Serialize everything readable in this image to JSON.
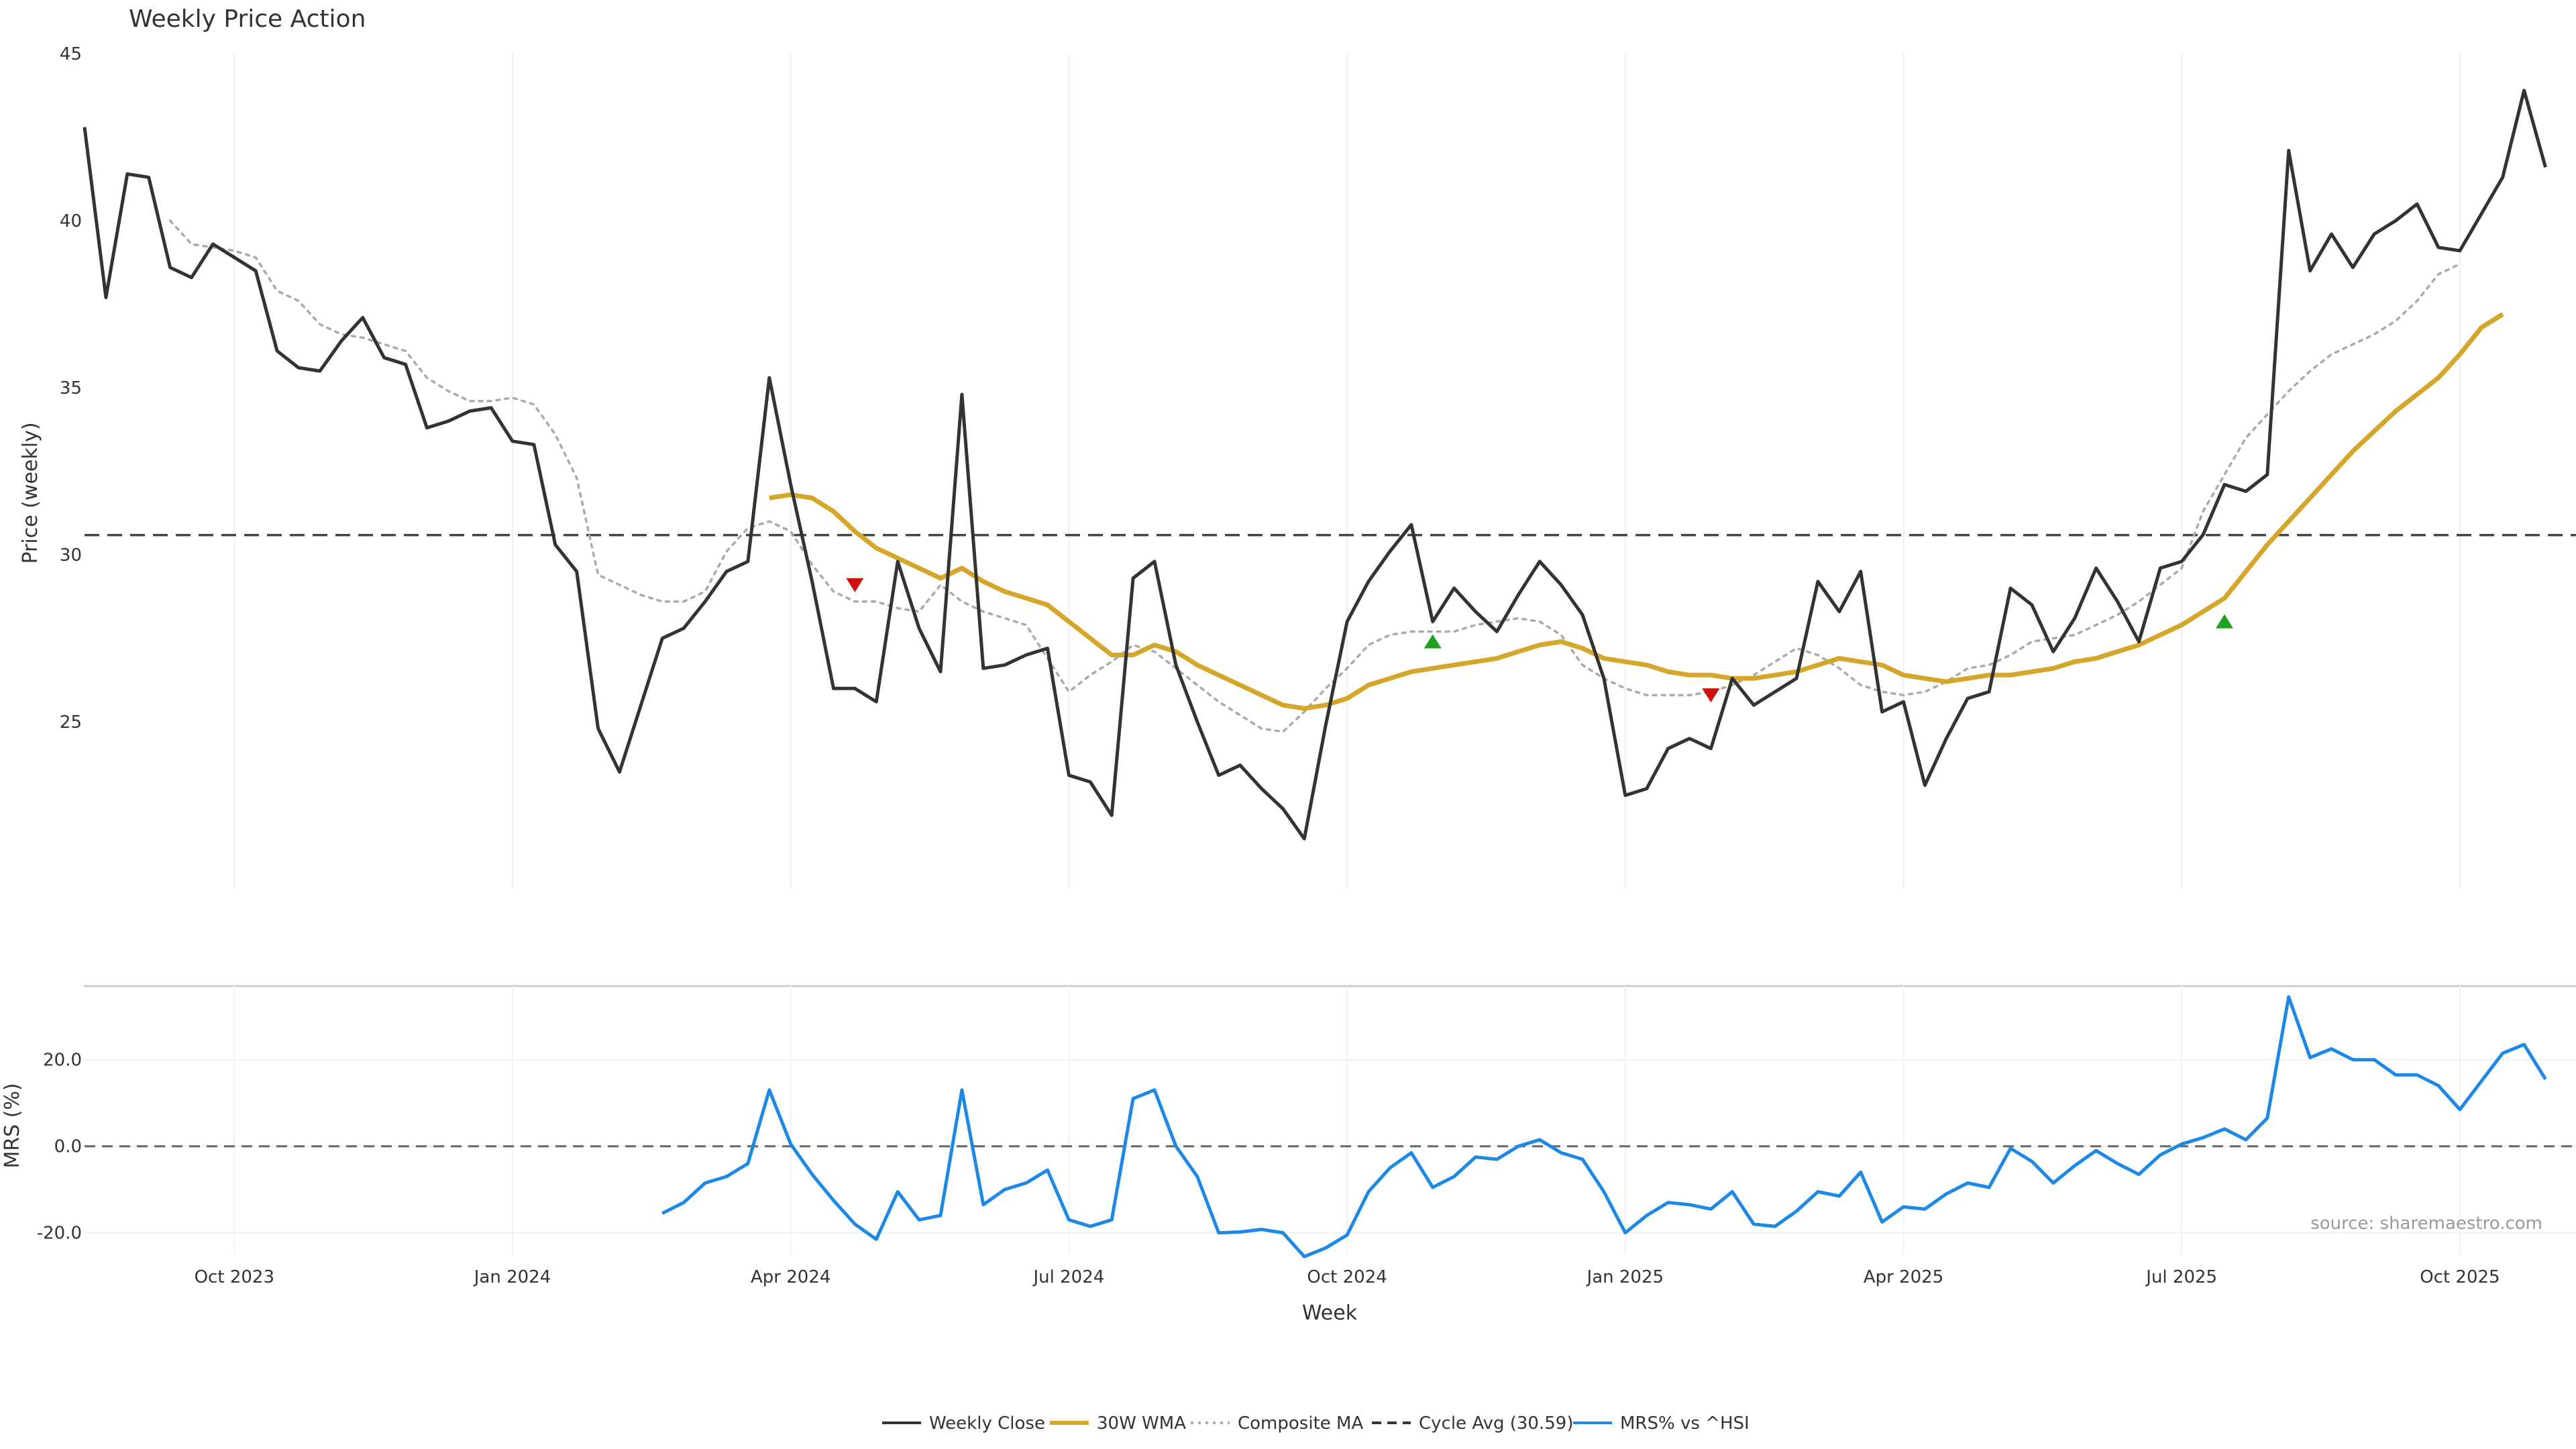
{
  "chart_data": [
    {
      "type": "line",
      "title": "Weekly Price Action",
      "ylabel": "Price (weekly)",
      "xlabel": "",
      "ylim": [
        20,
        45
      ],
      "yticks": [
        25,
        30,
        35,
        40,
        45
      ],
      "cycle_avg": 30.59,
      "series": [
        {
          "name": "Weekly Close",
          "color": "#333333",
          "start_week": 0,
          "values": [
            42.8,
            37.7,
            41.4,
            41.3,
            38.6,
            38.3,
            39.3,
            38.9,
            38.5,
            36.1,
            35.6,
            35.5,
            36.4,
            37.1,
            35.9,
            35.7,
            33.8,
            34.0,
            34.3,
            34.4,
            33.4,
            33.3,
            30.3,
            29.5,
            24.8,
            23.5,
            25.5,
            27.5,
            27.8,
            28.6,
            29.5,
            29.8,
            35.3,
            32.1,
            29.2,
            26.0,
            26.0,
            25.6,
            29.8,
            27.8,
            26.5,
            34.8,
            26.6,
            26.7,
            27.0,
            27.2,
            23.4,
            23.2,
            22.2,
            29.3,
            29.8,
            26.7,
            25.0,
            23.4,
            23.7,
            23.0,
            22.4,
            21.5,
            24.9,
            28.0,
            29.2,
            30.1,
            30.9,
            28.0,
            29.0,
            28.3,
            27.7,
            28.8,
            29.8,
            29.1,
            28.2,
            26.3,
            22.8,
            23.0,
            24.2,
            24.5,
            24.2,
            26.3,
            25.5,
            25.9,
            26.3,
            29.2,
            28.3,
            29.5,
            25.3,
            25.6,
            23.1,
            24.5,
            25.7,
            25.9,
            29.0,
            28.5,
            27.1,
            28.1,
            29.6,
            28.6,
            27.4,
            29.6,
            29.8,
            30.6,
            32.1,
            31.9,
            32.4,
            42.1,
            38.5,
            39.6,
            38.6,
            39.6,
            40.0,
            40.5,
            39.2,
            39.1,
            40.2,
            41.3,
            43.9,
            41.6
          ]
        },
        {
          "name": "30W WMA",
          "color": "#D4A62A",
          "start_week": 32,
          "values": [
            31.7,
            31.8,
            31.7,
            31.3,
            30.7,
            30.2,
            29.9,
            29.6,
            29.3,
            29.6,
            29.2,
            28.9,
            28.7,
            28.5,
            28.0,
            27.5,
            27.0,
            27.0,
            27.3,
            27.1,
            26.7,
            26.4,
            26.1,
            25.8,
            25.5,
            25.4,
            25.5,
            25.7,
            26.1,
            26.3,
            26.5,
            26.6,
            26.7,
            26.8,
            26.9,
            27.1,
            27.3,
            27.4,
            27.2,
            26.9,
            26.8,
            26.7,
            26.5,
            26.4,
            26.4,
            26.3,
            26.3,
            26.4,
            26.5,
            26.7,
            26.9,
            26.8,
            26.7,
            26.4,
            26.3,
            26.2,
            26.3,
            26.4,
            26.4,
            26.5,
            26.6,
            26.8,
            26.9,
            27.1,
            27.3,
            27.6,
            27.9,
            28.3,
            28.7,
            29.5,
            30.3,
            31.0,
            31.7,
            32.4,
            33.1,
            33.7,
            34.3,
            34.8,
            35.3,
            36.0,
            36.8,
            37.2
          ]
        },
        {
          "name": "Composite MA",
          "color": "#AAAAAA",
          "start_week": 4,
          "values": [
            40.0,
            39.3,
            39.2,
            39.1,
            38.9,
            37.9,
            37.6,
            36.9,
            36.6,
            36.5,
            36.3,
            36.1,
            35.3,
            34.9,
            34.6,
            34.6,
            34.7,
            34.5,
            33.6,
            32.3,
            29.4,
            29.1,
            28.8,
            28.6,
            28.6,
            28.9,
            30.1,
            30.8,
            31.0,
            30.7,
            29.7,
            28.9,
            28.6,
            28.6,
            28.4,
            28.3,
            29.1,
            28.6,
            28.3,
            28.1,
            27.9,
            26.9,
            25.9,
            26.4,
            26.8,
            27.3,
            27.1,
            26.6,
            26.1,
            25.6,
            25.2,
            24.8,
            24.7,
            25.3,
            26.0,
            26.6,
            27.3,
            27.6,
            27.7,
            27.7,
            27.7,
            27.9,
            28.0,
            28.1,
            28.0,
            27.6,
            26.7,
            26.3,
            26.0,
            25.8,
            25.8,
            25.8,
            25.9,
            26.1,
            26.4,
            26.8,
            27.2,
            27.0,
            26.6,
            26.1,
            25.9,
            25.8,
            25.9,
            26.2,
            26.6,
            26.7,
            27.0,
            27.4,
            27.5,
            27.6,
            27.9,
            28.2,
            28.6,
            29.1,
            29.6,
            31.3,
            32.4,
            33.5,
            34.2,
            34.9,
            35.5,
            36.0,
            36.3,
            36.6,
            37.0,
            37.6,
            38.4,
            38.7
          ]
        }
      ],
      "markers": [
        {
          "week": 36,
          "value": 29.1,
          "kind": "down",
          "color": "#CC1111"
        },
        {
          "week": 63,
          "value": 27.4,
          "kind": "up",
          "color": "#22A022"
        },
        {
          "week": 76,
          "value": 25.8,
          "kind": "down",
          "color": "#CC1111"
        },
        {
          "week": 100,
          "value": 28.0,
          "kind": "up",
          "color": "#22A022"
        }
      ]
    },
    {
      "type": "line",
      "ylabel": "MRS (%)",
      "xlabel": "Week",
      "ylim": [
        -25,
        37
      ],
      "yticks": [
        "-20.0",
        "0.0",
        "20.0"
      ],
      "ytick_values": [
        -20,
        0,
        20
      ],
      "zero_line": 0,
      "source": "source: sharemaestro.com",
      "x_ticks": [
        {
          "label": "Oct 2023",
          "week": 7
        },
        {
          "label": "Jan 2024",
          "week": 20
        },
        {
          "label": "Apr 2024",
          "week": 33
        },
        {
          "label": "Jul 2024",
          "week": 46
        },
        {
          "label": "Oct 2024",
          "week": 59
        },
        {
          "label": "Jan 2025",
          "week": 72
        },
        {
          "label": "Apr 2025",
          "week": 85
        },
        {
          "label": "Jul 2025",
          "week": 98
        },
        {
          "label": "Oct 2025",
          "week": 111
        }
      ],
      "series": [
        {
          "name": "MRS% vs ^HSI",
          "color": "#1E88E5",
          "start_week": 27,
          "values": [
            -15.5,
            -13.0,
            -8.5,
            -7.0,
            -4.0,
            13.0,
            0.5,
            -6.5,
            -12.5,
            -18.0,
            -21.5,
            -10.5,
            -17.0,
            -16.0,
            13.0,
            -13.5,
            -10.0,
            -8.5,
            -5.5,
            -17.0,
            -18.5,
            -17.0,
            11.0,
            13.0,
            0.0,
            -7.0,
            -20.0,
            -19.8,
            -19.2,
            -20.0,
            -25.5,
            -23.5,
            -20.5,
            -10.5,
            -5.0,
            -1.5,
            -9.5,
            -7.0,
            -2.5,
            -3.0,
            0.0,
            1.5,
            -1.5,
            -3.0,
            -10.5,
            -20.0,
            -16.0,
            -13.0,
            -13.5,
            -14.5,
            -10.5,
            -18.0,
            -18.5,
            -15.0,
            -10.5,
            -11.5,
            -6.0,
            -17.5,
            -14.0,
            -14.5,
            -11.0,
            -8.5,
            -9.5,
            -0.5,
            -3.5,
            -8.5,
            -4.5,
            -1.0,
            -4.0,
            -6.5,
            -2.0,
            0.5,
            2.0,
            4.0,
            1.5,
            6.5,
            34.5,
            20.5,
            22.5,
            20.0,
            20.0,
            16.5,
            16.5,
            14.0,
            8.5,
            15.0,
            21.5,
            23.5,
            15.5
          ]
        }
      ]
    }
  ],
  "legend": [
    {
      "label": "Weekly Close",
      "color": "#333333",
      "style": "solid"
    },
    {
      "label": "30W WMA",
      "color": "#D4A62A",
      "style": "solid"
    },
    {
      "label": "Composite MA",
      "color": "#AAAAAA",
      "style": "dotted"
    },
    {
      "label": "Cycle Avg (30.59)",
      "color": "#333333",
      "style": "dashed"
    },
    {
      "label": "MRS% vs ^HSI",
      "color": "#1E88E5",
      "style": "solid"
    }
  ]
}
